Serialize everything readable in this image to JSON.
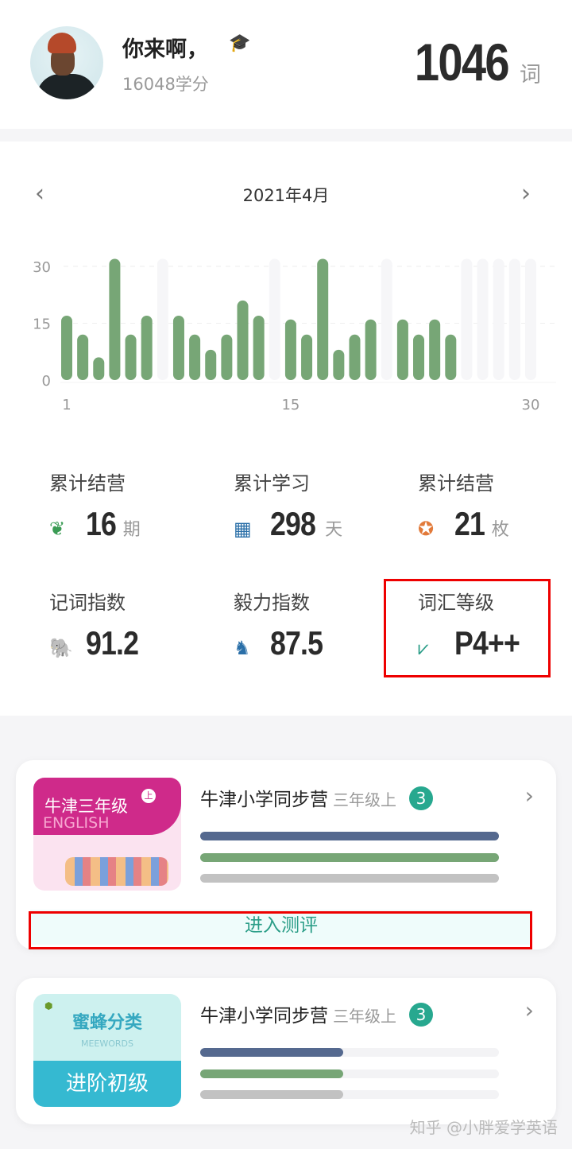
{
  "header": {
    "greeting": "你来啊，",
    "credits": "16048学分",
    "word_count": "1046",
    "word_unit": "词",
    "cap_icon": "graduation-cap-icon"
  },
  "calendar": {
    "month": "2021年4月",
    "prev": "‹",
    "next": "›"
  },
  "chart_data": {
    "type": "bar",
    "x_ticks": [
      "1",
      "15",
      "30"
    ],
    "y_ticks": [
      "0",
      "15",
      "30"
    ],
    "ylim": [
      0,
      30
    ],
    "days": [
      1,
      2,
      3,
      4,
      5,
      6,
      7,
      8,
      9,
      10,
      11,
      12,
      13,
      14,
      15,
      16,
      17,
      18,
      19,
      20,
      21,
      22,
      23,
      24,
      25,
      26,
      27,
      28,
      29,
      30
    ],
    "values": [
      17,
      12,
      6,
      32,
      12,
      17,
      null,
      17,
      12,
      8,
      12,
      21,
      17,
      null,
      16,
      12,
      32,
      8,
      12,
      16,
      null,
      16,
      12,
      16,
      12,
      null,
      null,
      null,
      null,
      null
    ],
    "bar_color": "#77a676",
    "empty_color": "#f6f6f8",
    "grid": "dashed"
  },
  "stats": [
    {
      "label": "累计结营",
      "value": "16",
      "unit": "期",
      "icon": "book-leaf-icon",
      "color": "#3a9b54"
    },
    {
      "label": "累计学习",
      "value": "298",
      "unit": "天",
      "icon": "calendar-icon",
      "color": "#2a6fa8"
    },
    {
      "label": "累计结营",
      "value": "21",
      "unit": "枚",
      "icon": "medal-icon",
      "color": "#e27a3a"
    },
    {
      "label": "记词指数",
      "value": "91.2",
      "unit": "",
      "icon": "elephant-icon",
      "color": "#2a6fa8"
    },
    {
      "label": "毅力指数",
      "value": "87.5",
      "unit": "",
      "icon": "horse-icon",
      "color": "#2a6fa8"
    },
    {
      "label": "词汇等级",
      "value": "P4++",
      "unit": "",
      "icon": "ruler-icon",
      "color": "#2a9d87"
    }
  ],
  "courses": [
    {
      "title": "牛津小学同步营",
      "sub": "三年级上",
      "badge": "3",
      "thumb_title": "牛津三年级",
      "thumb_sub": "ENGLISH",
      "thumb_tag": "上",
      "progress": [
        1.0,
        1.0,
        1.0
      ],
      "action": "进入测评"
    },
    {
      "title": "牛津小学同步营",
      "sub": "三年级上",
      "badge": "3",
      "thumb_title": "蜜蜂分类",
      "thumb_sub": "MEEWORDS",
      "thumb_footer": "进阶初级",
      "progress": [
        0.48,
        0.48,
        0.48
      ]
    }
  ],
  "progress_colors": [
    "#55698f",
    "#77a676",
    "#c2c2c2"
  ],
  "watermark": "知乎 @小胖爱学英语"
}
